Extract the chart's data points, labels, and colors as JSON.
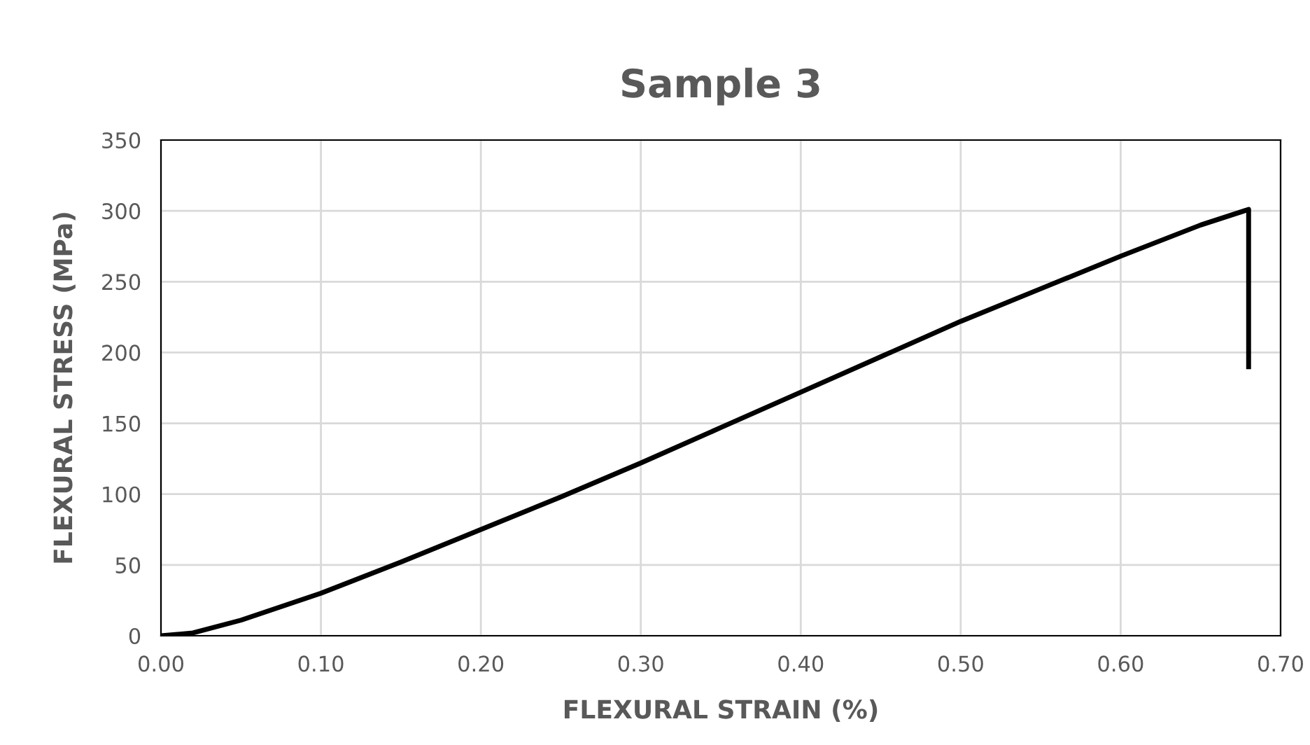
{
  "chart_data": {
    "type": "line",
    "title": "Sample 3",
    "xlabel": "FLEXURAL STRAIN (%)",
    "ylabel": "FLEXURAL STRESS (MPa)",
    "series": [
      {
        "color": "#000000",
        "x": [
          0,
          0.02,
          0.05,
          0.1,
          0.15,
          0.2,
          0.25,
          0.3,
          0.35,
          0.4,
          0.45,
          0.5,
          0.55,
          0.6,
          0.65,
          0.68,
          0.68
        ],
        "values": [
          0,
          2,
          11,
          30,
          52,
          75,
          98,
          122,
          147,
          172,
          197,
          222,
          245,
          268,
          290,
          301,
          190
        ]
      }
    ],
    "xlim": [
      0,
      0.7
    ],
    "xticks": [
      {
        "value": 0,
        "label": "0.00"
      },
      {
        "value": 0.1,
        "label": "0.10"
      },
      {
        "value": 0.2,
        "label": "0.20"
      },
      {
        "value": 0.3,
        "label": "0.30"
      },
      {
        "value": 0.4,
        "label": "0.40"
      },
      {
        "value": 0.5,
        "label": "0.50"
      },
      {
        "value": 0.6,
        "label": "0.60"
      },
      {
        "value": 0.7,
        "label": "0.70"
      }
    ],
    "ylim": [
      0,
      350
    ],
    "yticks": [
      0,
      50,
      100,
      150,
      200,
      250,
      300,
      350
    ],
    "grid": true,
    "line_style": "solid",
    "marker": "none"
  }
}
